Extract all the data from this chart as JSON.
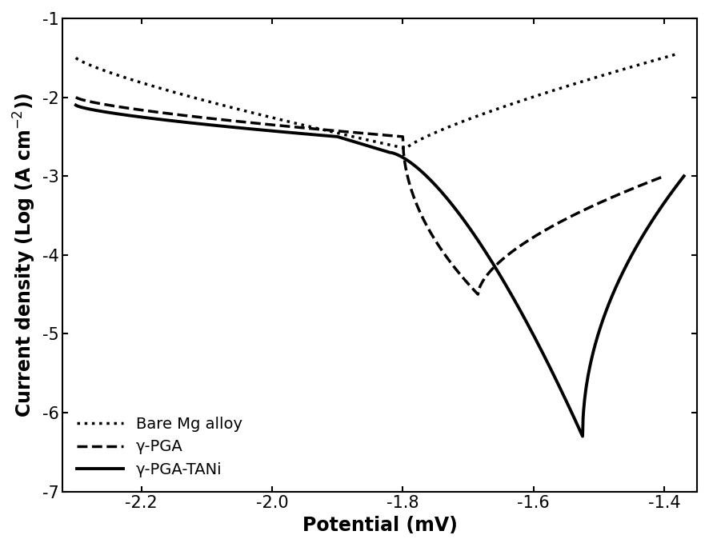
{
  "xlabel": "Potential (mV)",
  "ylabel": "Current density (Log (A cm$^{-2}$))",
  "xlim": [
    -2.32,
    -1.35
  ],
  "ylim": [
    -7,
    -1
  ],
  "xticks": [
    -2.2,
    -2.0,
    -1.8,
    -1.6,
    -1.4
  ],
  "yticks": [
    -7,
    -6,
    -5,
    -4,
    -3,
    -2,
    -1
  ],
  "legend_labels": [
    "Bare Mg alloy",
    "γ-PGA",
    "γ-PGA-TANi"
  ],
  "background_color": "#ffffff",
  "tick_label_fontsize": 15,
  "axis_label_fontsize": 17,
  "legend_fontsize": 14
}
